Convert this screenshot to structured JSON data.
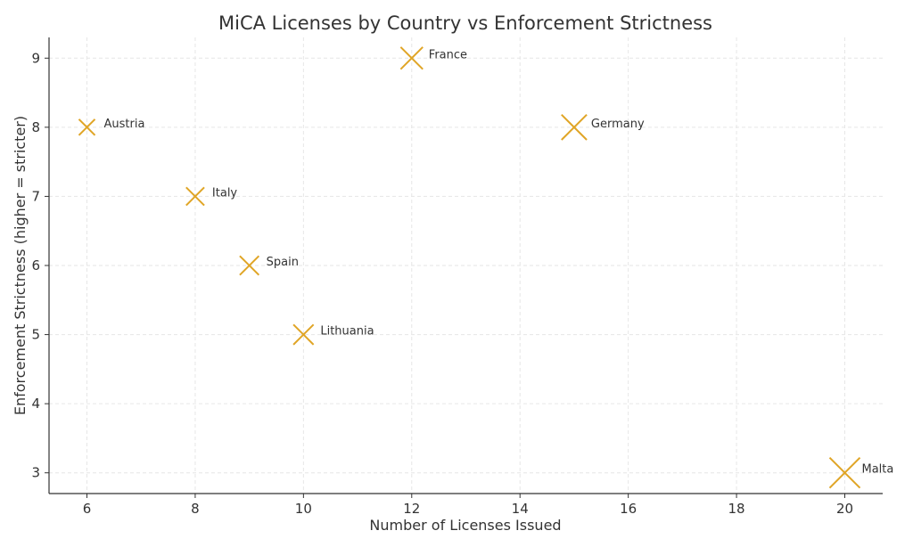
{
  "chart_data": {
    "type": "scatter",
    "title": "MiCA Licenses by Country vs Enforcement Strictness",
    "xlabel": "Number of Licenses Issued",
    "ylabel": "Enforcement Strictness (higher = stricter)",
    "xlim": [
      5.3,
      20.7
    ],
    "ylim": [
      2.7,
      9.3
    ],
    "xticks": [
      6,
      8,
      10,
      12,
      14,
      16,
      18,
      20
    ],
    "yticks": [
      3,
      4,
      5,
      6,
      7,
      8,
      9
    ],
    "grid": true,
    "marker": "x",
    "color": "#E0A526",
    "points": [
      {
        "label": "Austria",
        "x": 6,
        "y": 8
      },
      {
        "label": "France",
        "x": 12,
        "y": 9
      },
      {
        "label": "Germany",
        "x": 15,
        "y": 8
      },
      {
        "label": "Italy",
        "x": 8,
        "y": 7
      },
      {
        "label": "Spain",
        "x": 9,
        "y": 6
      },
      {
        "label": "Lithuania",
        "x": 10,
        "y": 5
      },
      {
        "label": "Malta",
        "x": 20,
        "y": 3
      }
    ]
  }
}
